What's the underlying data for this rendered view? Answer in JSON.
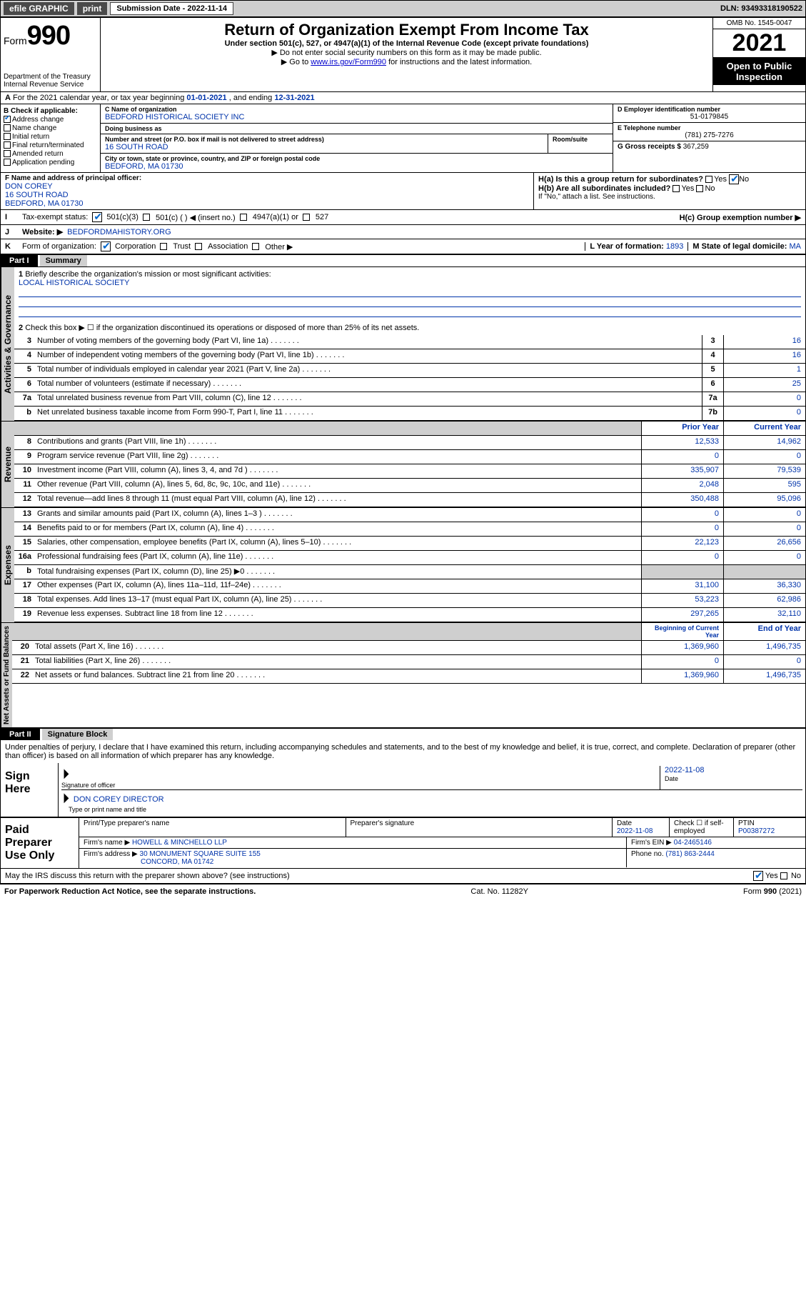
{
  "topbar": {
    "efile_label": "efile GRAPHIC",
    "print_label": "print",
    "submission_label": "Submission Date - 2022-11-14",
    "dln_label": "DLN: 93493318190522"
  },
  "header": {
    "form_word": "Form",
    "form_num": "990",
    "dept": "Department of the Treasury",
    "irs": "Internal Revenue Service",
    "title": "Return of Organization Exempt From Income Tax",
    "subtitle": "Under section 501(c), 527, or 4947(a)(1) of the Internal Revenue Code (except private foundations)",
    "note1": "▶ Do not enter social security numbers on this form as it may be made public.",
    "note2_pre": "▶ Go to ",
    "note2_link": "www.irs.gov/Form990",
    "note2_post": " for instructions and the latest information.",
    "omb": "OMB No. 1545-0047",
    "year": "2021",
    "open_pub": "Open to Public Inspection"
  },
  "row_a": {
    "a": "A",
    "text_pre": "For the 2021 calendar year, or tax year beginning ",
    "begin": "01-01-2021",
    "mid": " , and ending ",
    "end": "12-31-2021"
  },
  "col_b": {
    "title": "B Check if applicable:",
    "items": [
      "Address change",
      "Name change",
      "Initial return",
      "Final return/terminated",
      "Amended return",
      "Application pending"
    ],
    "checked": "Address change"
  },
  "c": {
    "lbl": "C Name of organization",
    "name": "BEDFORD HISTORICAL SOCIETY INC",
    "dba_lbl": "Doing business as",
    "dba": "",
    "addr_lbl": "Number and street (or P.O. box if mail is not delivered to street address)",
    "room_lbl": "Room/suite",
    "addr": "16 SOUTH ROAD",
    "city_lbl": "City or town, state or province, country, and ZIP or foreign postal code",
    "city": "BEDFORD, MA  01730"
  },
  "d": {
    "lbl": "D Employer identification number",
    "val": "51-0179845"
  },
  "e": {
    "lbl": "E Telephone number",
    "val": "(781) 275-7276"
  },
  "g": {
    "lbl": "G Gross receipts $",
    "val": "367,259"
  },
  "f": {
    "lbl": "F Name and address of principal officer:",
    "name": "DON COREY",
    "addr1": "16 SOUTH ROAD",
    "addr2": "BEDFORD, MA  01730"
  },
  "h": {
    "a_lbl": "H(a)  Is this a group return for subordinates?",
    "b_lbl": "H(b)  Are all subordinates included?",
    "note": "If \"No,\" attach a list. See instructions.",
    "c_lbl": "H(c)  Group exemption number ▶",
    "yes": "Yes",
    "no": "No"
  },
  "row_i": {
    "lbl": "I",
    "text": "Tax-exempt status:",
    "c501c3": "501(c)(3)",
    "c501c": "501(c) (   ) ◀ (insert no.)",
    "c4947": "4947(a)(1) or",
    "c527": "527"
  },
  "row_j": {
    "lbl": "J",
    "text": "Website: ▶",
    "val": "BEDFORDMAHISTORY.ORG"
  },
  "row_k": {
    "lbl": "K",
    "text": "Form of organization:",
    "opts": [
      "Corporation",
      "Trust",
      "Association",
      "Other ▶"
    ],
    "l_lbl": "L Year of formation:",
    "l_val": "1893",
    "m_lbl": "M State of legal domicile:",
    "m_val": "MA"
  },
  "part1": {
    "hdr": "Part I",
    "title": "Summary",
    "line1_lbl": "1",
    "line1_text": "Briefly describe the organization's mission or most significant activities:",
    "line1_val": "LOCAL HISTORICAL SOCIETY",
    "line2_lbl": "2",
    "line2_text": "Check this box ▶ ☐ if the organization discontinued its operations or disposed of more than 25% of its net assets.",
    "gov_label": "Activities & Governance",
    "gov_lines": [
      {
        "n": "3",
        "d": "Number of voting members of the governing body (Part VI, line 1a)",
        "box": "3",
        "v": "16"
      },
      {
        "n": "4",
        "d": "Number of independent voting members of the governing body (Part VI, line 1b)",
        "box": "4",
        "v": "16"
      },
      {
        "n": "5",
        "d": "Total number of individuals employed in calendar year 2021 (Part V, line 2a)",
        "box": "5",
        "v": "1"
      },
      {
        "n": "6",
        "d": "Total number of volunteers (estimate if necessary)",
        "box": "6",
        "v": "25"
      },
      {
        "n": "7a",
        "d": "Total unrelated business revenue from Part VIII, column (C), line 12",
        "box": "7a",
        "v": "0"
      },
      {
        "n": "b",
        "d": "Net unrelated business taxable income from Form 990-T, Part I, line 11",
        "box": "7b",
        "v": "0"
      }
    ],
    "rev_label": "Revenue",
    "rev_hdr_prior": "Prior Year",
    "rev_hdr_curr": "Current Year",
    "rev_lines": [
      {
        "n": "8",
        "d": "Contributions and grants (Part VIII, line 1h)",
        "p": "12,533",
        "c": "14,962"
      },
      {
        "n": "9",
        "d": "Program service revenue (Part VIII, line 2g)",
        "p": "0",
        "c": "0"
      },
      {
        "n": "10",
        "d": "Investment income (Part VIII, column (A), lines 3, 4, and 7d )",
        "p": "335,907",
        "c": "79,539"
      },
      {
        "n": "11",
        "d": "Other revenue (Part VIII, column (A), lines 5, 6d, 8c, 9c, 10c, and 11e)",
        "p": "2,048",
        "c": "595"
      },
      {
        "n": "12",
        "d": "Total revenue—add lines 8 through 11 (must equal Part VIII, column (A), line 12)",
        "p": "350,488",
        "c": "95,096"
      }
    ],
    "exp_label": "Expenses",
    "exp_lines": [
      {
        "n": "13",
        "d": "Grants and similar amounts paid (Part IX, column (A), lines 1–3 )",
        "p": "0",
        "c": "0"
      },
      {
        "n": "14",
        "d": "Benefits paid to or for members (Part IX, column (A), line 4)",
        "p": "0",
        "c": "0"
      },
      {
        "n": "15",
        "d": "Salaries, other compensation, employee benefits (Part IX, column (A), lines 5–10)",
        "p": "22,123",
        "c": "26,656"
      },
      {
        "n": "16a",
        "d": "Professional fundraising fees (Part IX, column (A), line 11e)",
        "p": "0",
        "c": "0"
      },
      {
        "n": "b",
        "d": "Total fundraising expenses (Part IX, column (D), line 25) ▶0",
        "p": "",
        "c": "",
        "grey": true
      },
      {
        "n": "17",
        "d": "Other expenses (Part IX, column (A), lines 11a–11d, 11f–24e)",
        "p": "31,100",
        "c": "36,330"
      },
      {
        "n": "18",
        "d": "Total expenses. Add lines 13–17 (must equal Part IX, column (A), line 25)",
        "p": "53,223",
        "c": "62,986"
      },
      {
        "n": "19",
        "d": "Revenue less expenses. Subtract line 18 from line 12",
        "p": "297,265",
        "c": "32,110"
      }
    ],
    "net_label": "Net Assets or Fund Balances",
    "net_hdr_begin": "Beginning of Current Year",
    "net_hdr_end": "End of Year",
    "net_lines": [
      {
        "n": "20",
        "d": "Total assets (Part X, line 16)",
        "p": "1,369,960",
        "c": "1,496,735"
      },
      {
        "n": "21",
        "d": "Total liabilities (Part X, line 26)",
        "p": "0",
        "c": "0"
      },
      {
        "n": "22",
        "d": "Net assets or fund balances. Subtract line 21 from line 20",
        "p": "1,369,960",
        "c": "1,496,735"
      }
    ]
  },
  "part2": {
    "hdr": "Part II",
    "title": "Signature Block",
    "declaration": "Under penalties of perjury, I declare that I have examined this return, including accompanying schedules and statements, and to the best of my knowledge and belief, it is true, correct, and complete. Declaration of preparer (other than officer) is based on all information of which preparer has any knowledge.",
    "sign_here": "Sign Here",
    "sig_officer_lbl": "Signature of officer",
    "sig_date_lbl": "Date",
    "sig_date": "2022-11-08",
    "name_title": "DON COREY DIRECTOR",
    "name_title_lbl": "Type or print name and title",
    "paid_prep": "Paid Preparer Use Only",
    "prep_name_lbl": "Print/Type preparer's name",
    "prep_sig_lbl": "Preparer's signature",
    "prep_date_lbl": "Date",
    "prep_date": "2022-11-08",
    "self_emp": "Check ☐ if self-employed",
    "ptin_lbl": "PTIN",
    "ptin": "P00387272",
    "firm_name_lbl": "Firm's name    ▶",
    "firm_name": "HOWELL & MINCHELLO LLP",
    "firm_ein_lbl": "Firm's EIN ▶",
    "firm_ein": "04-2465146",
    "firm_addr_lbl": "Firm's address ▶",
    "firm_addr1": "30 MONUMENT SQUARE SUITE 155",
    "firm_addr2": "CONCORD, MA  01742",
    "phone_lbl": "Phone no.",
    "phone": "(781) 863-2444",
    "may_irs": "May the IRS discuss this return with the preparer shown above? (see instructions)",
    "yes": "Yes",
    "no": "No"
  },
  "footer": {
    "left": "For Paperwork Reduction Act Notice, see the separate instructions.",
    "mid": "Cat. No. 11282Y",
    "right": "Form 990 (2021)"
  }
}
